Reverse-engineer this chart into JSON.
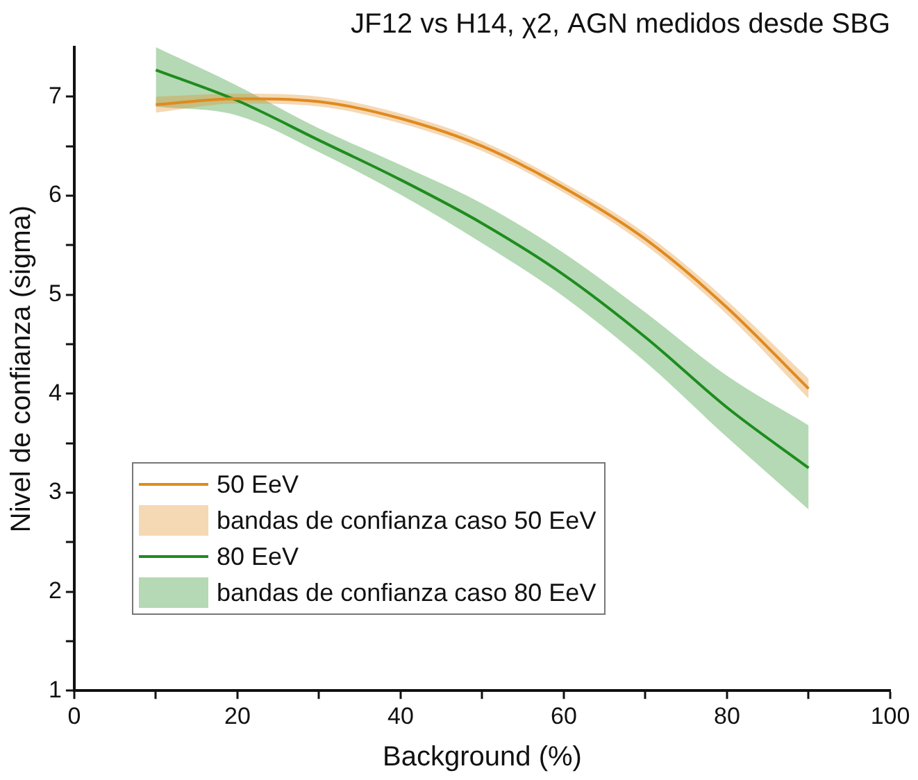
{
  "chart_data": {
    "type": "line",
    "title": "JF12 vs H14, χ2, AGN medidos desde SBG",
    "xlabel": "Background (%)",
    "ylabel": "Nivel de confianza (sigma)",
    "x": [
      10,
      20,
      30,
      40,
      50,
      60,
      70,
      80,
      90
    ],
    "series": [
      {
        "name": "50 EeV",
        "color": "#e08a1e",
        "values": [
          6.92,
          6.98,
          6.95,
          6.78,
          6.5,
          6.08,
          5.56,
          4.87,
          4.05
        ],
        "lower": [
          6.84,
          6.93,
          6.9,
          6.73,
          6.45,
          6.03,
          5.5,
          4.8,
          3.95
        ],
        "upper": [
          7.0,
          7.03,
          7.0,
          6.83,
          6.55,
          6.13,
          5.62,
          4.94,
          4.15
        ]
      },
      {
        "name": "80 EeV",
        "color": "#1e8c1e",
        "values": [
          7.27,
          6.96,
          6.56,
          6.16,
          5.72,
          5.2,
          4.57,
          3.86,
          3.25
        ],
        "lower": [
          6.9,
          6.81,
          6.44,
          6.01,
          5.52,
          4.98,
          4.32,
          3.56,
          2.83
        ],
        "upper": [
          7.5,
          7.11,
          6.68,
          6.31,
          5.92,
          5.42,
          4.82,
          4.18,
          3.68
        ]
      }
    ],
    "annotations": [
      "bandas de confianza caso 50 EeV",
      "bandas de confianza caso 80 EeV"
    ],
    "xlim": [
      0,
      100
    ],
    "xticks": [
      0,
      {
        "value": 10,
        "label": null
      },
      20,
      {
        "value": 30,
        "label": null
      },
      40,
      {
        "value": 50,
        "label": null
      },
      60,
      {
        "value": 70,
        "label": null
      },
      80,
      {
        "value": 90,
        "label": null
      },
      100
    ],
    "ylim": [
      1,
      7.5
    ],
    "yticks": [
      1,
      {
        "value": 1.5,
        "label": null
      },
      2,
      {
        "value": 2.5,
        "label": null
      },
      3,
      {
        "value": 3.5,
        "label": null
      },
      4,
      {
        "value": 4.5,
        "label": null
      },
      5,
      {
        "value": 5.5,
        "label": null
      },
      6,
      {
        "value": 6.5,
        "label": null
      },
      7
    ],
    "grid": false,
    "legend": "bottom left",
    "marker": "none",
    "line_style": "solid"
  }
}
